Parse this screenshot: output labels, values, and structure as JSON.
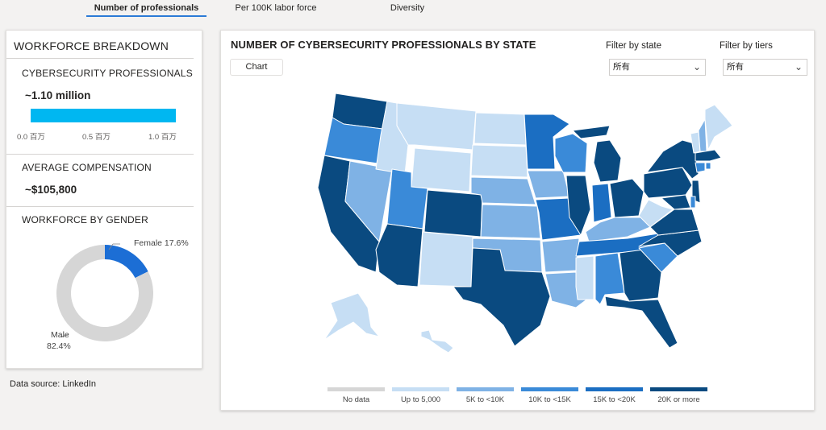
{
  "tabs": [
    {
      "label": "Number of professionals"
    },
    {
      "label": "Per 100K labor force"
    },
    {
      "label": "Diversity"
    }
  ],
  "breakdown": {
    "title": "WORKFORCE BREAKDOWN",
    "professionals_title": "CYBERSECURITY PROFESSIONALS",
    "professionals_value": "~1.10 million",
    "professionals_fraction": 1.1,
    "axis_ticks": [
      "0.0 百万",
      "0.5 百万",
      "1.0 百万"
    ],
    "compensation_title": "AVERAGE COMPENSATION",
    "compensation_value": "~$105,800",
    "gender_title": "WORKFORCE BY GENDER",
    "gender": [
      {
        "label": "Female 17.6%",
        "value": 17.6,
        "color": "#1c6ed5"
      },
      {
        "label_line1": "Male",
        "label_line2": "82.4%",
        "value": 82.4,
        "color": "#d6d6d6"
      }
    ]
  },
  "source": "Data source: LinkedIn",
  "map": {
    "title": "NUMBER OF CYBERSECURITY PROFESSIONALS BY STATE",
    "chart_button": "Chart",
    "filter_state_label": "Filter by state",
    "filter_state_value": "所有",
    "filter_tiers_label": "Filter by tiers",
    "filter_tiers_value": "所有",
    "legend": [
      {
        "label": "No data",
        "color": "#d6d6d6"
      },
      {
        "label": "Up to 5,000",
        "color": "#c6def4"
      },
      {
        "label": "5K to <10K",
        "color": "#7fb2e5"
      },
      {
        "label": "10K to <15K",
        "color": "#3a8ad8"
      },
      {
        "label": "15K to <20K",
        "color": "#1b6ec2"
      },
      {
        "label": "20K or more",
        "color": "#0a4a80"
      }
    ]
  }
}
